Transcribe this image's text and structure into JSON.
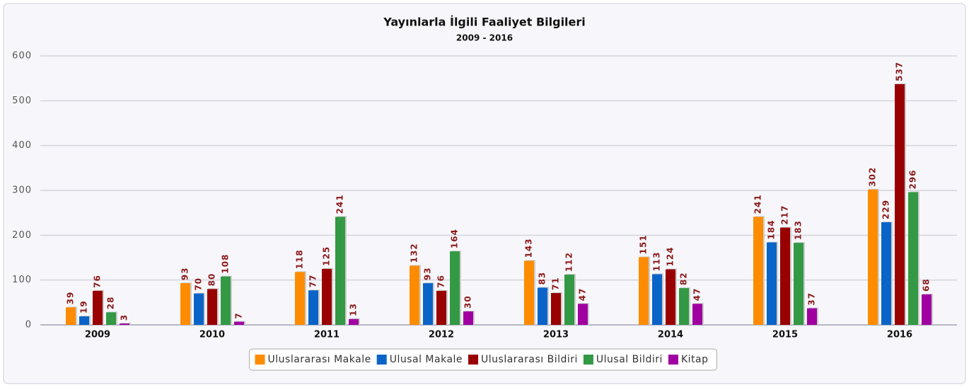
{
  "chart_data": {
    "type": "bar",
    "title": "Yayınlarla İlgili Faaliyet Bilgileri",
    "subtitle": "2009 - 2016",
    "categories": [
      "2009",
      "2010",
      "2011",
      "2012",
      "2013",
      "2014",
      "2015",
      "2016"
    ],
    "series": [
      {
        "name": "Uluslararası Makale",
        "color": "#ff8c00",
        "values": [
          39,
          93,
          118,
          132,
          143,
          151,
          241,
          302
        ]
      },
      {
        "name": "Ulusal Makale",
        "color": "#0a64c8",
        "values": [
          19,
          70,
          77,
          93,
          83,
          113,
          184,
          229
        ]
      },
      {
        "name": "Uluslararası Bildiri",
        "color": "#990000",
        "values": [
          76,
          80,
          125,
          76,
          71,
          124,
          217,
          537
        ]
      },
      {
        "name": "Ulusal Bildiri",
        "color": "#339944",
        "values": [
          28,
          108,
          241,
          164,
          112,
          82,
          183,
          296
        ]
      },
      {
        "name": "Kitap",
        "color": "#a000a0",
        "values": [
          3,
          7,
          13,
          30,
          47,
          47,
          37,
          68
        ]
      }
    ],
    "ylim": [
      0,
      600
    ],
    "yticks": [
      0,
      100,
      200,
      300,
      400,
      500,
      600
    ],
    "grid": true,
    "legend": "bottom"
  }
}
